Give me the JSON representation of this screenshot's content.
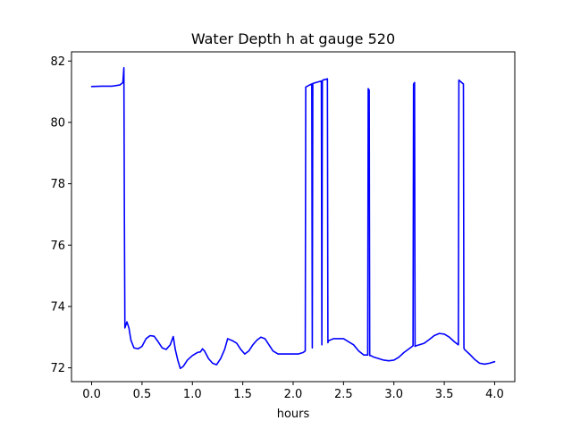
{
  "chart_data": {
    "type": "line",
    "title": "Water Depth h at gauge 520",
    "xlabel": "hours",
    "ylabel": "",
    "xlim": [
      -0.2,
      4.2
    ],
    "ylim": [
      71.55,
      82.3
    ],
    "xticks": [
      0.0,
      0.5,
      1.0,
      1.5,
      2.0,
      2.5,
      3.0,
      3.5,
      4.0
    ],
    "xtick_labels": [
      "0.0",
      "0.5",
      "1.0",
      "1.5",
      "2.0",
      "2.5",
      "3.0",
      "3.5",
      "4.0"
    ],
    "yticks": [
      72,
      74,
      76,
      78,
      80,
      82
    ],
    "ytick_labels": [
      "72",
      "74",
      "76",
      "78",
      "80",
      "82"
    ],
    "grid": false,
    "series": [
      {
        "color": "#0000ff",
        "x": [
          0.0,
          0.1,
          0.2,
          0.28,
          0.31,
          0.32,
          0.325,
          0.33,
          0.35,
          0.37,
          0.39,
          0.42,
          0.46,
          0.5,
          0.54,
          0.58,
          0.62,
          0.66,
          0.7,
          0.74,
          0.78,
          0.81,
          0.83,
          0.855,
          0.88,
          0.91,
          0.95,
          1.0,
          1.05,
          1.08,
          1.1,
          1.12,
          1.16,
          1.2,
          1.24,
          1.28,
          1.32,
          1.35,
          1.4,
          1.44,
          1.48,
          1.52,
          1.56,
          1.6,
          1.64,
          1.68,
          1.72,
          1.76,
          1.8,
          1.85,
          1.9,
          1.95,
          2.0,
          2.05,
          2.1,
          2.12,
          2.125,
          2.18,
          2.185,
          2.19,
          2.195,
          2.28,
          2.285,
          2.29,
          2.295,
          2.34,
          2.345,
          2.35,
          2.4,
          2.5,
          2.6,
          2.65,
          2.7,
          2.74,
          2.745,
          2.755,
          2.76,
          2.77,
          2.8,
          2.9,
          2.95,
          3.0,
          3.05,
          3.1,
          3.15,
          3.19,
          3.195,
          3.205,
          3.21,
          3.22,
          3.3,
          3.35,
          3.4,
          3.45,
          3.5,
          3.55,
          3.6,
          3.64,
          3.645,
          3.655,
          3.69,
          3.695,
          3.7,
          3.75,
          3.8,
          3.85,
          3.9,
          3.95,
          4.0
        ],
        "y": [
          81.17,
          81.18,
          81.18,
          81.22,
          81.3,
          81.78,
          77.0,
          73.3,
          73.5,
          73.3,
          72.9,
          72.65,
          72.62,
          72.7,
          72.95,
          73.05,
          73.03,
          72.85,
          72.65,
          72.6,
          72.75,
          73.02,
          72.6,
          72.25,
          71.98,
          72.05,
          72.25,
          72.4,
          72.5,
          72.52,
          72.62,
          72.55,
          72.3,
          72.15,
          72.1,
          72.3,
          72.6,
          72.95,
          72.88,
          72.8,
          72.6,
          72.45,
          72.55,
          72.75,
          72.9,
          73.0,
          72.95,
          72.75,
          72.55,
          72.45,
          72.45,
          72.45,
          72.45,
          72.45,
          72.5,
          72.55,
          81.15,
          81.25,
          81.25,
          72.65,
          81.27,
          81.35,
          72.75,
          81.35,
          81.38,
          81.42,
          72.82,
          72.88,
          72.95,
          72.95,
          72.75,
          72.55,
          72.42,
          72.42,
          81.1,
          81.05,
          72.4,
          72.4,
          72.35,
          72.25,
          72.23,
          72.25,
          72.35,
          72.5,
          72.62,
          72.72,
          81.25,
          81.3,
          72.7,
          72.72,
          72.8,
          72.92,
          73.05,
          73.12,
          73.1,
          73.0,
          72.85,
          72.75,
          81.38,
          81.35,
          81.25,
          72.65,
          72.6,
          72.45,
          72.28,
          72.15,
          72.12,
          72.15,
          72.2
        ]
      }
    ]
  }
}
